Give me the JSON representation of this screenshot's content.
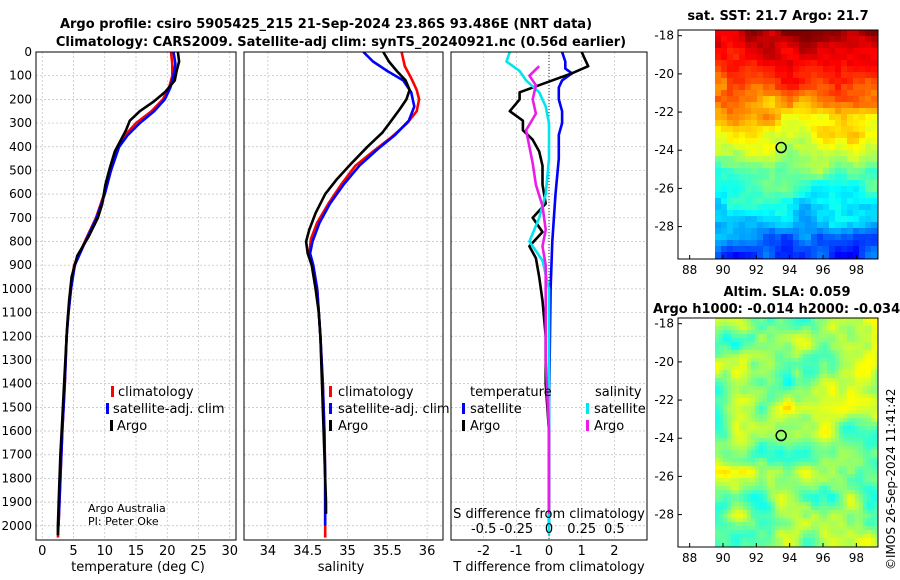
{
  "header": {
    "title_line1": "Argo profile: csiro 5905425_215 21-Sep-2024 23.86S 93.486E (NRT data)",
    "title_line2": "Climatology: CARS2009. Satellite-adj clim: synTS_20240921.nc (0.56d earlier)"
  },
  "credit": {
    "line1": "Argo Australia",
    "line2": "PI: Peter Oke"
  },
  "timestamp": "©IMOS 26-Sep-2024 11:41:42",
  "colors": {
    "climatology": "#ff0000",
    "satellite": "#0000ff",
    "argo": "#000000",
    "s_satellite": "#00e5ee",
    "s_argo": "#e81ee8",
    "grid": "#bdbdbd"
  },
  "legend": {
    "climatology": "climatology",
    "satellite_adj": "satellite-adj. clim",
    "argo": "Argo",
    "temperature": "temperature",
    "salinity": "salinity",
    "satellite": "satellite"
  },
  "chart_data": [
    {
      "type": "line",
      "id": "temperature",
      "xlabel": "temperature (deg C)",
      "ylabel": "",
      "xlim": [
        -1,
        31
      ],
      "ylim": [
        2060,
        0
      ],
      "x_ticks": [
        0,
        5,
        10,
        15,
        20,
        25,
        30
      ],
      "y_ticks": [
        0,
        100,
        200,
        300,
        400,
        500,
        600,
        700,
        800,
        900,
        1000,
        1100,
        1200,
        1300,
        1400,
        1500,
        1600,
        1700,
        1800,
        1900,
        2000
      ],
      "series": [
        {
          "name": "climatology",
          "color": "#ff0000",
          "points": [
            [
              20.6,
              0
            ],
            [
              20.8,
              50
            ],
            [
              20.8,
              100
            ],
            [
              20.3,
              150
            ],
            [
              19.3,
              200
            ],
            [
              17.5,
              250
            ],
            [
              15.0,
              300
            ],
            [
              13.3,
              350
            ],
            [
              12.0,
              400
            ],
            [
              10.9,
              500
            ],
            [
              9.9,
              600
            ],
            [
              8.6,
              700
            ],
            [
              6.8,
              800
            ],
            [
              5.1,
              900
            ],
            [
              4.6,
              1000
            ],
            [
              4.2,
              1100
            ],
            [
              3.9,
              1200
            ],
            [
              3.6,
              1400
            ],
            [
              3.2,
              1600
            ],
            [
              2.9,
              1800
            ],
            [
              2.6,
              2000
            ],
            [
              2.5,
              2050
            ]
          ]
        },
        {
          "name": "satellite-adj. clim",
          "color": "#0000ff",
          "points": [
            [
              21.0,
              0
            ],
            [
              21.3,
              50
            ],
            [
              21.0,
              100
            ],
            [
              20.5,
              150
            ],
            [
              19.6,
              200
            ],
            [
              17.9,
              250
            ],
            [
              15.6,
              300
            ],
            [
              13.7,
              350
            ],
            [
              12.3,
              400
            ],
            [
              11.0,
              500
            ],
            [
              10.0,
              600
            ],
            [
              8.7,
              700
            ],
            [
              6.9,
              800
            ],
            [
              5.2,
              900
            ],
            [
              4.6,
              1000
            ],
            [
              4.2,
              1100
            ],
            [
              3.9,
              1200
            ],
            [
              3.6,
              1400
            ],
            [
              3.2,
              1600
            ],
            [
              2.9,
              1800
            ],
            [
              2.6,
              2000
            ]
          ]
        },
        {
          "name": "Argo",
          "color": "#000000",
          "points": [
            [
              21.7,
              0
            ],
            [
              21.9,
              40
            ],
            [
              21.5,
              80
            ],
            [
              21.2,
              120
            ],
            [
              19.6,
              170
            ],
            [
              17.8,
              210
            ],
            [
              15.6,
              250
            ],
            [
              14.0,
              290
            ],
            [
              13.4,
              330
            ],
            [
              12.4,
              380
            ],
            [
              11.6,
              420
            ],
            [
              10.8,
              490
            ],
            [
              10.1,
              560
            ],
            [
              9.6,
              640
            ],
            [
              8.9,
              700
            ],
            [
              7.4,
              780
            ],
            [
              5.6,
              860
            ],
            [
              4.7,
              950
            ],
            [
              4.3,
              1050
            ],
            [
              4.0,
              1150
            ],
            [
              3.8,
              1250
            ],
            [
              3.5,
              1400
            ],
            [
              3.2,
              1550
            ],
            [
              2.9,
              1700
            ],
            [
              2.7,
              1850
            ],
            [
              2.5,
              2000
            ],
            [
              2.5,
              2040
            ]
          ]
        }
      ]
    },
    {
      "type": "line",
      "id": "salinity",
      "xlabel": "salinity",
      "xlim": [
        33.7,
        36.2
      ],
      "ylim": [
        2060,
        0
      ],
      "x_ticks": [
        34,
        34.5,
        35,
        35.5,
        36
      ],
      "series": [
        {
          "name": "climatology",
          "color": "#ff0000",
          "points": [
            [
              35.68,
              0
            ],
            [
              35.72,
              60
            ],
            [
              35.8,
              110
            ],
            [
              35.87,
              160
            ],
            [
              35.9,
              200
            ],
            [
              35.87,
              250
            ],
            [
              35.75,
              300
            ],
            [
              35.55,
              360
            ],
            [
              35.32,
              420
            ],
            [
              35.1,
              480
            ],
            [
              34.92,
              560
            ],
            [
              34.76,
              640
            ],
            [
              34.62,
              720
            ],
            [
              34.54,
              790
            ],
            [
              34.52,
              850
            ],
            [
              34.56,
              900
            ],
            [
              34.62,
              1000
            ],
            [
              34.66,
              1200
            ],
            [
              34.69,
              1400
            ],
            [
              34.71,
              1600
            ],
            [
              34.72,
              1800
            ],
            [
              34.72,
              2000
            ],
            [
              34.72,
              2050
            ]
          ]
        },
        {
          "name": "satellite-adj. clim",
          "color": "#0000ff",
          "points": [
            [
              35.2,
              0
            ],
            [
              35.32,
              40
            ],
            [
              35.5,
              80
            ],
            [
              35.7,
              120
            ],
            [
              35.8,
              170
            ],
            [
              35.84,
              230
            ],
            [
              35.77,
              290
            ],
            [
              35.6,
              350
            ],
            [
              35.38,
              410
            ],
            [
              35.15,
              480
            ],
            [
              34.95,
              560
            ],
            [
              34.78,
              640
            ],
            [
              34.65,
              720
            ],
            [
              34.56,
              800
            ],
            [
              34.53,
              850
            ],
            [
              34.57,
              900
            ],
            [
              34.62,
              1000
            ],
            [
              34.66,
              1200
            ],
            [
              34.69,
              1400
            ],
            [
              34.71,
              1600
            ],
            [
              34.72,
              1800
            ],
            [
              34.72,
              2000
            ]
          ]
        },
        {
          "name": "Argo",
          "color": "#000000",
          "points": [
            [
              35.45,
              0
            ],
            [
              35.52,
              40
            ],
            [
              35.62,
              80
            ],
            [
              35.73,
              120
            ],
            [
              35.78,
              160
            ],
            [
              35.74,
              200
            ],
            [
              35.66,
              240
            ],
            [
              35.55,
              290
            ],
            [
              35.44,
              340
            ],
            [
              35.25,
              400
            ],
            [
              35.05,
              470
            ],
            [
              34.86,
              540
            ],
            [
              34.72,
              600
            ],
            [
              34.6,
              680
            ],
            [
              34.52,
              750
            ],
            [
              34.48,
              800
            ],
            [
              34.5,
              850
            ],
            [
              34.55,
              900
            ],
            [
              34.6,
              1000
            ],
            [
              34.64,
              1100
            ],
            [
              34.66,
              1200
            ],
            [
              34.68,
              1400
            ],
            [
              34.7,
              1600
            ],
            [
              34.72,
              1800
            ],
            [
              34.73,
              1900
            ],
            [
              34.73,
              1950
            ]
          ]
        }
      ]
    },
    {
      "type": "line",
      "id": "difference",
      "xlabel": "T difference from climatology",
      "x2label": "S difference from climatology",
      "xlim": [
        -3,
        3
      ],
      "ylim": [
        2060,
        0
      ],
      "x_ticks": [
        -2,
        -1,
        0,
        1,
        2
      ],
      "s_ticks": [
        -0.5,
        -0.25,
        0,
        0.25,
        0.5
      ],
      "series": [
        {
          "name": "T satellite",
          "color": "#0000ff",
          "points": [
            [
              0.4,
              0
            ],
            [
              0.5,
              40
            ],
            [
              0.5,
              70
            ],
            [
              0.7,
              90
            ],
            [
              0.4,
              120
            ],
            [
              0.3,
              150
            ],
            [
              0.3,
              200
            ],
            [
              0.4,
              250
            ],
            [
              0.4,
              300
            ],
            [
              0.3,
              350
            ],
            [
              0.3,
              450
            ],
            [
              0.2,
              600
            ],
            [
              0.1,
              800
            ],
            [
              0.05,
              1000
            ],
            [
              0.0,
              1500
            ],
            [
              0.0,
              2000
            ]
          ]
        },
        {
          "name": "T Argo",
          "color": "#000000",
          "points": [
            [
              1.0,
              0
            ],
            [
              1.1,
              30
            ],
            [
              1.2,
              60
            ],
            [
              0.7,
              90
            ],
            [
              -0.1,
              130
            ],
            [
              -0.9,
              170
            ],
            [
              -0.9,
              200
            ],
            [
              -1.2,
              250
            ],
            [
              -0.8,
              290
            ],
            [
              -0.8,
              330
            ],
            [
              -0.5,
              370
            ],
            [
              -0.3,
              420
            ],
            [
              -0.2,
              480
            ],
            [
              -0.2,
              560
            ],
            [
              -0.1,
              640
            ],
            [
              -0.5,
              700
            ],
            [
              -0.2,
              760
            ],
            [
              -0.6,
              820
            ],
            [
              -0.4,
              870
            ],
            [
              -0.3,
              950
            ],
            [
              -0.2,
              1050
            ],
            [
              -0.1,
              1200
            ],
            [
              -0.1,
              1400
            ],
            [
              0.0,
              1600
            ],
            [
              0.0,
              1800
            ],
            [
              0.0,
              1950
            ]
          ]
        },
        {
          "name": "S satellite",
          "color": "#00e5ee",
          "points": [
            [
              -1.2,
              0
            ],
            [
              -1.3,
              40
            ],
            [
              -0.9,
              80
            ],
            [
              -0.7,
              120
            ],
            [
              -0.3,
              170
            ],
            [
              -0.1,
              230
            ],
            [
              0.0,
              300
            ],
            [
              0.0,
              450
            ],
            [
              -0.1,
              600
            ],
            [
              -0.3,
              700
            ],
            [
              -0.6,
              800
            ],
            [
              -0.2,
              880
            ],
            [
              0.0,
              1000
            ],
            [
              0.0,
              1500
            ],
            [
              0.0,
              2000
            ],
            [
              0.0,
              2040
            ]
          ]
        },
        {
          "name": "S Argo",
          "color": "#e81ee8",
          "points": [
            [
              -0.3,
              60
            ],
            [
              -0.6,
              100
            ],
            [
              -0.4,
              140
            ],
            [
              -0.5,
              200
            ],
            [
              -0.4,
              260
            ],
            [
              -0.7,
              330
            ],
            [
              -0.6,
              400
            ],
            [
              -0.5,
              470
            ],
            [
              -0.4,
              560
            ],
            [
              -0.2,
              650
            ],
            [
              -0.1,
              750
            ],
            [
              -0.2,
              820
            ],
            [
              -0.1,
              900
            ],
            [
              -0.1,
              1050
            ],
            [
              -0.1,
              1300
            ],
            [
              0.0,
              1600
            ],
            [
              0.0,
              1800
            ],
            [
              0.0,
              1950
            ]
          ]
        }
      ]
    },
    {
      "type": "heatmap",
      "id": "sst",
      "title": "sat. SST: 21.7 Argo: 21.7",
      "x_ticks": [
        88,
        90,
        92,
        94,
        96,
        98
      ],
      "y_ticks": [
        -18,
        -20,
        -22,
        -24,
        -26,
        -28
      ],
      "xlim": [
        87.3,
        99.3
      ],
      "ylim": [
        -29.7,
        -17.7
      ],
      "marker": [
        93.49,
        -23.86
      ]
    },
    {
      "type": "heatmap",
      "id": "sla",
      "title": "Altim. SLA: 0.059",
      "subtitle": "Argo h1000: -0.014 h2000: -0.034",
      "x_ticks": [
        88,
        90,
        92,
        94,
        96,
        98
      ],
      "y_ticks": [
        -18,
        -20,
        -22,
        -24,
        -26,
        -28
      ],
      "xlim": [
        87.3,
        99.3
      ],
      "ylim": [
        -29.7,
        -17.7
      ],
      "marker": [
        93.49,
        -23.86
      ]
    }
  ]
}
